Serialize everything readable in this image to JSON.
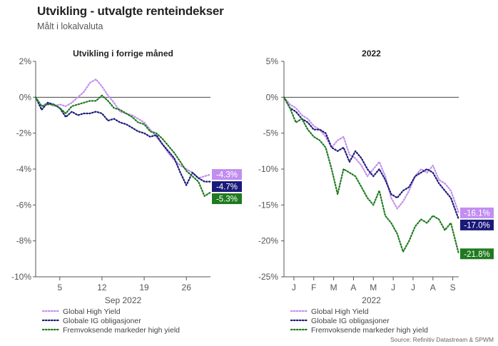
{
  "header": {
    "title": "Utvikling - utvalgte renteindekser",
    "subtitle": "Målt i lokalvaluta"
  },
  "footer": {
    "source": "Source: Refinitiv Datastream & SPWM"
  },
  "colors": {
    "global_hy": "#c28ef0",
    "global_ig": "#1a1a7a",
    "em_hy": "#1f7a1f"
  },
  "chart_data": [
    {
      "type": "line",
      "title": "Utvikling i forrige måned",
      "xlabel": "Sep 2022",
      "ylabel": "",
      "ylim": [
        -10,
        2
      ],
      "xlim": [
        1,
        30
      ],
      "y_ticks": [
        2,
        0,
        -2,
        -4,
        -6,
        -8,
        -10
      ],
      "y_tick_labels": [
        "2%",
        "0%",
        "-2%",
        "-4%",
        "-6%",
        "-8%",
        "-10%"
      ],
      "x_ticks": [
        5,
        12,
        19,
        26
      ],
      "x_tick_labels": [
        "5",
        "12",
        "19",
        "26"
      ],
      "grid": "horizontal zero line only",
      "legend": "bottom-left",
      "series": [
        {
          "name": "Global High Yield",
          "end_label": "-4.3%",
          "x": [
            1,
            2,
            3,
            4,
            5,
            6,
            7,
            8,
            9,
            10,
            11,
            12,
            13,
            14,
            15,
            16,
            17,
            18,
            19,
            20,
            21,
            22,
            23,
            24,
            25,
            26,
            27,
            28,
            29,
            30
          ],
          "values": [
            0,
            -0.5,
            -0.3,
            -0.5,
            -0.4,
            -0.5,
            -0.3,
            0,
            0.3,
            0.8,
            1.0,
            0.6,
            0.1,
            -0.3,
            -0.8,
            -0.9,
            -1.0,
            -1.2,
            -1.4,
            -1.8,
            -2.2,
            -2.6,
            -3.1,
            -3.5,
            -3.8,
            -4.0,
            -4.2,
            -4.5,
            -4.4,
            -4.3
          ]
        },
        {
          "name": "Globale IG obligasjoner",
          "end_label": "-4.7%",
          "x": [
            1,
            2,
            3,
            4,
            5,
            6,
            7,
            8,
            9,
            10,
            11,
            12,
            13,
            14,
            15,
            16,
            17,
            18,
            19,
            20,
            21,
            22,
            23,
            24,
            25,
            26,
            27,
            28,
            29,
            30
          ],
          "values": [
            0,
            -0.7,
            -0.3,
            -0.4,
            -0.6,
            -1.1,
            -0.8,
            -1.0,
            -0.9,
            -0.9,
            -0.8,
            -0.9,
            -1.3,
            -1.2,
            -1.4,
            -1.5,
            -1.7,
            -1.9,
            -2.0,
            -2.2,
            -2.1,
            -2.6,
            -3.0,
            -3.4,
            -4.2,
            -4.9,
            -4.2,
            -4.5,
            -4.7,
            -4.7
          ]
        },
        {
          "name": "Fremvoksende markeder high yield",
          "end_label": "-5.3%",
          "x": [
            1,
            2,
            3,
            4,
            5,
            6,
            7,
            8,
            9,
            10,
            11,
            12,
            13,
            14,
            15,
            16,
            17,
            18,
            19,
            20,
            21,
            22,
            23,
            24,
            25,
            26,
            27,
            28,
            29,
            30
          ],
          "values": [
            0,
            -0.5,
            -0.4,
            -0.4,
            -0.6,
            -0.9,
            -0.5,
            -0.4,
            -0.3,
            -0.2,
            -0.2,
            0.1,
            -0.2,
            -0.6,
            -0.7,
            -0.9,
            -1.1,
            -1.4,
            -1.5,
            -1.9,
            -2.0,
            -2.3,
            -2.7,
            -3.1,
            -3.6,
            -4.1,
            -4.4,
            -4.7,
            -5.5,
            -5.3
          ]
        }
      ]
    },
    {
      "type": "line",
      "title": "2022",
      "xlabel": "2022",
      "ylabel": "",
      "ylim": [
        -25,
        5
      ],
      "xlim": [
        0,
        8.8
      ],
      "y_ticks": [
        5,
        0,
        -5,
        -10,
        -15,
        -20,
        -25
      ],
      "y_tick_labels": [
        "5%",
        "0%",
        "-5%",
        "-10%",
        "-15%",
        "-20%",
        "-25%"
      ],
      "x_ticks": [
        0.5,
        1.5,
        2.5,
        3.5,
        4.5,
        5.5,
        6.5,
        7.5,
        8.5
      ],
      "x_tick_labels": [
        "J",
        "F",
        "M",
        "A",
        "M",
        "J",
        "J",
        "A",
        "S"
      ],
      "grid": "horizontal zero line only",
      "legend": "bottom-left",
      "series": [
        {
          "name": "Global High Yield",
          "end_label": "-16.1%",
          "x": [
            0,
            0.3,
            0.6,
            0.9,
            1.2,
            1.5,
            1.8,
            2.1,
            2.4,
            2.7,
            3.0,
            3.3,
            3.6,
            3.9,
            4.2,
            4.5,
            4.8,
            5.1,
            5.4,
            5.7,
            6.0,
            6.3,
            6.6,
            6.9,
            7.2,
            7.5,
            7.8,
            8.1,
            8.4,
            8.8
          ],
          "values": [
            0,
            -1.0,
            -1.5,
            -2.5,
            -3.0,
            -4.0,
            -4.5,
            -5.5,
            -7.0,
            -6.0,
            -5.5,
            -8.0,
            -8.5,
            -9.5,
            -11.0,
            -10.0,
            -9.0,
            -11.0,
            -14.0,
            -15.5,
            -14.5,
            -13.0,
            -11.0,
            -10.0,
            -10.5,
            -9.5,
            -11.5,
            -12.0,
            -13.0,
            -16.1
          ]
        },
        {
          "name": "Globale IG obligasjoner",
          "end_label": "-17.0%",
          "x": [
            0,
            0.3,
            0.6,
            0.9,
            1.2,
            1.5,
            1.8,
            2.1,
            2.4,
            2.7,
            3.0,
            3.3,
            3.6,
            3.9,
            4.2,
            4.5,
            4.8,
            5.1,
            5.4,
            5.7,
            6.0,
            6.3,
            6.6,
            6.9,
            7.2,
            7.5,
            7.8,
            8.1,
            8.4,
            8.8
          ],
          "values": [
            0,
            -1.5,
            -2.0,
            -3.0,
            -3.5,
            -4.5,
            -4.5,
            -5.0,
            -7.0,
            -7.5,
            -7.0,
            -9.0,
            -7.5,
            -8.5,
            -10.0,
            -11.0,
            -10.0,
            -11.5,
            -13.5,
            -14.0,
            -13.0,
            -12.5,
            -11.0,
            -10.5,
            -10.0,
            -10.5,
            -12.0,
            -13.0,
            -14.0,
            -17.0
          ]
        },
        {
          "name": "Fremvoksende markeder high yield",
          "end_label": "-21.8%",
          "x": [
            0,
            0.3,
            0.6,
            0.9,
            1.2,
            1.5,
            1.8,
            2.1,
            2.4,
            2.7,
            3.0,
            3.3,
            3.6,
            3.9,
            4.2,
            4.5,
            4.8,
            5.1,
            5.4,
            5.7,
            6.0,
            6.3,
            6.6,
            6.9,
            7.2,
            7.5,
            7.8,
            8.1,
            8.4,
            8.8
          ],
          "values": [
            0,
            -1.5,
            -3.5,
            -3.0,
            -4.5,
            -5.5,
            -6.0,
            -7.0,
            -10.0,
            -13.5,
            -10.0,
            -10.5,
            -11.0,
            -12.5,
            -14.0,
            -15.0,
            -13.0,
            -16.5,
            -17.5,
            -19.0,
            -21.5,
            -20.0,
            -18.0,
            -17.0,
            -17.5,
            -16.5,
            -17.0,
            -18.5,
            -17.5,
            -21.8
          ]
        }
      ]
    }
  ]
}
